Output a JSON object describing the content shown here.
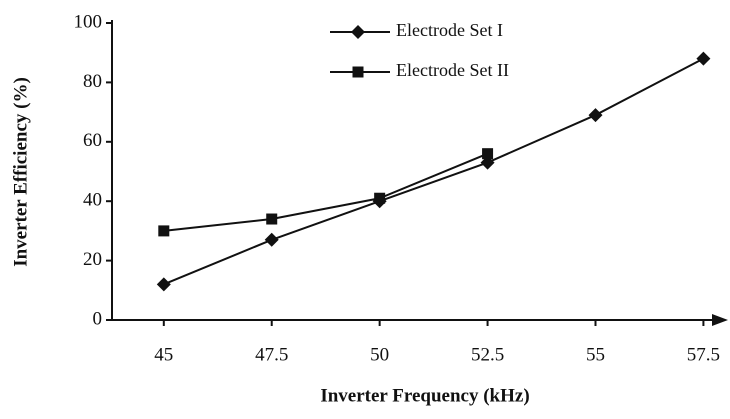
{
  "chart_data": {
    "type": "line",
    "x_label": "Inverter Frequency (kHz)",
    "y_label": "Inverter Efficiency (%)",
    "x": [
      45,
      47.5,
      50,
      52.5,
      55,
      57.5
    ],
    "series": [
      {
        "name": "Electrode Set I",
        "color": "#111111",
        "marker": "diamond",
        "values": [
          12,
          27,
          40,
          53,
          69,
          88
        ]
      },
      {
        "name": "Electrode Set II",
        "color": "#111111",
        "marker": "square",
        "values": [
          30,
          34,
          41,
          56,
          null,
          null
        ]
      }
    ],
    "xlim": [
      43.8,
      58
    ],
    "xticks": [
      45,
      47.5,
      50,
      52.5,
      55,
      57.5
    ],
    "ylim": [
      0,
      100
    ],
    "yticks": [
      0,
      20,
      40,
      60,
      80,
      100
    ],
    "grid": false
  }
}
